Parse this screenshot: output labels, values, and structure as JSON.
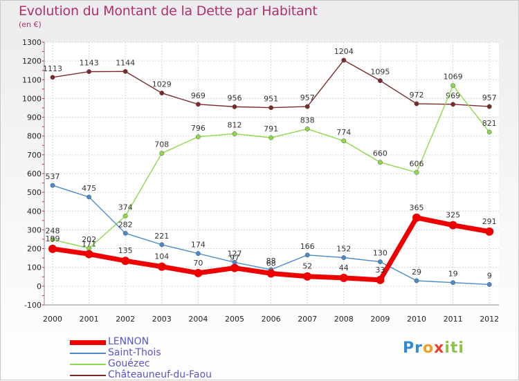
{
  "chart_data": {
    "type": "line",
    "title": "Evolution du Montant de la Dette par Habitant",
    "subtitle": "(en €)",
    "x": [
      "2000",
      "2001",
      "2002",
      "2003",
      "2004",
      "2005",
      "2006",
      "2007",
      "2008",
      "2009",
      "2010",
      "2011",
      "2012"
    ],
    "ylim": [
      -100,
      1300
    ],
    "yticks": [
      -100,
      0,
      100,
      200,
      300,
      400,
      500,
      600,
      700,
      800,
      900,
      1000,
      1100,
      1200,
      1300
    ],
    "grid": true,
    "legend_position": "bottom-left",
    "series": [
      {
        "name": "Châteauneuf-du-Faou",
        "color": "#7a2a2a",
        "values": [
          1113,
          1143,
          1144,
          1029,
          969,
          956,
          951,
          957,
          1204,
          1095,
          972,
          969,
          957
        ]
      },
      {
        "name": "Gouézec",
        "color": "#8ed84a",
        "values": [
          248,
          202,
          374,
          708,
          796,
          812,
          791,
          838,
          774,
          660,
          606,
          1069,
          821
        ]
      },
      {
        "name": "Saint-Thois",
        "color": "#4a8ac8",
        "values": [
          537,
          475,
          282,
          221,
          174,
          127,
          88,
          166,
          152,
          130,
          29,
          19,
          9
        ]
      },
      {
        "name": "LENNON",
        "color": "#ee0000",
        "values": [
          199,
          171,
          135,
          104,
          70,
          97,
          68,
          52,
          44,
          33,
          365,
          325,
          291
        ]
      }
    ]
  },
  "legend": {
    "items": [
      {
        "label": "LENNON",
        "color": "#ee0000"
      },
      {
        "label": "Saint-Thois",
        "color": "#4a8ac8"
      },
      {
        "label": "Gouézec",
        "color": "#8ed84a"
      },
      {
        "label": "Châteauneuf-du-Faou",
        "color": "#7a2a2a"
      }
    ]
  },
  "logo": {
    "letters": [
      "P",
      "r",
      "o",
      "x",
      "i",
      "t",
      "i"
    ],
    "colors": [
      "#2e8bd6",
      "#2e8bd6",
      "#f0a020",
      "#e8402a",
      "#8bc34a",
      "#8bc34a",
      "#8bc34a"
    ]
  }
}
